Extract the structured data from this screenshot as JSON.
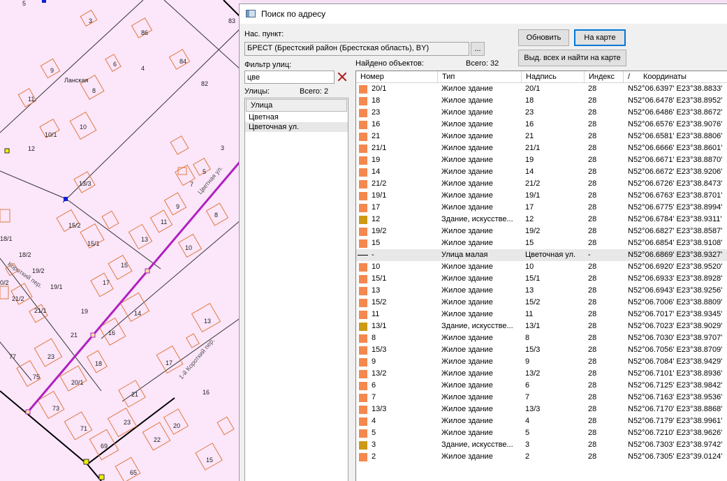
{
  "map": {
    "labels": [
      "5",
      "3",
      "83",
      "86",
      "Ланская",
      "6",
      "4",
      "9",
      "84",
      "8",
      "82",
      "11",
      "10",
      "10/1",
      "12",
      "3",
      "5",
      "13/3",
      "7",
      "9",
      "15/2",
      "11",
      "8",
      "15/1",
      "13",
      "10",
      "18/1",
      "18/2",
      "19/2",
      "15",
      "0/2",
      "19/1",
      "17",
      "21/2",
      "21/1",
      "14",
      "19",
      "13",
      "21",
      "16",
      "77",
      "23",
      "18",
      "17",
      "75",
      "20/1",
      "21",
      "16",
      "73",
      "71",
      "20",
      "23",
      "22",
      "69",
      "15",
      "65"
    ],
    "street_labels": [
      "Цветная ул.",
      "Короткий пер.",
      "1-й Короткий пер."
    ]
  },
  "dialog": {
    "title": "Поиск по адресу",
    "locality_label": "Нас. пункт:",
    "locality_value": "БРЕСТ (Брестский район (Брестская область), BY)",
    "browse_button": "...",
    "refresh_button": "Обновить",
    "on_map_button": "На карте",
    "select_all_button": "Выд. всех и найти на карте",
    "street_filter_label": "Фильтр улиц:",
    "street_filter_value": "цве",
    "streets_label": "Улицы:",
    "streets_total": "Всего: 2",
    "streets_header": "Улица",
    "streets": [
      "Цветная",
      "Цветочная ул."
    ],
    "found_label": "Найдено объектов:",
    "found_total": "Всего: 32",
    "columns": {
      "number": "Номер",
      "type": "Тип",
      "caption": "Надпись",
      "index": "Индекс",
      "sort": "/",
      "coords": "Координаты"
    },
    "colors": {
      "house": "#f4884e",
      "artificial": "#cc9a15",
      "street": "#000000"
    },
    "rows": [
      {
        "n": "20/1",
        "type": "Жилое здание",
        "cap": "20/1",
        "idx": "28",
        "coords": "N52°06.6397' E23°38.8833'",
        "icon": "house"
      },
      {
        "n": "18",
        "type": "Жилое здание",
        "cap": "18",
        "idx": "28",
        "coords": "N52°06.6478' E23°38.8952'",
        "icon": "house"
      },
      {
        "n": "23",
        "type": "Жилое здание",
        "cap": "23",
        "idx": "28",
        "coords": "N52°06.6486' E23°38.8672'",
        "icon": "house"
      },
      {
        "n": "16",
        "type": "Жилое здание",
        "cap": "16",
        "idx": "28",
        "coords": "N52°06.6576' E23°38.9076'",
        "icon": "house"
      },
      {
        "n": "21",
        "type": "Жилое здание",
        "cap": "21",
        "idx": "28",
        "coords": "N52°06.6581' E23°38.8806'",
        "icon": "house"
      },
      {
        "n": "21/1",
        "type": "Жилое здание",
        "cap": "21/1",
        "idx": "28",
        "coords": "N52°06.6666' E23°38.8601'",
        "icon": "house"
      },
      {
        "n": "19",
        "type": "Жилое здание",
        "cap": "19",
        "idx": "28",
        "coords": "N52°06.6671' E23°38.8870'",
        "icon": "house"
      },
      {
        "n": "14",
        "type": "Жилое здание",
        "cap": "14",
        "idx": "28",
        "coords": "N52°06.6672' E23°38.9206'",
        "icon": "house"
      },
      {
        "n": "21/2",
        "type": "Жилое здание",
        "cap": "21/2",
        "idx": "28",
        "coords": "N52°06.6726' E23°38.8473'",
        "icon": "house"
      },
      {
        "n": "19/1",
        "type": "Жилое здание",
        "cap": "19/1",
        "idx": "28",
        "coords": "N52°06.6763' E23°38.8701'",
        "icon": "house"
      },
      {
        "n": "17",
        "type": "Жилое здание",
        "cap": "17",
        "idx": "28",
        "coords": "N52°06.6775' E23°38.8994'",
        "icon": "house"
      },
      {
        "n": "12",
        "type": "Здание, искусстве...",
        "cap": "12",
        "idx": "28",
        "coords": "N52°06.6784' E23°38.9311'",
        "icon": "artificial"
      },
      {
        "n": "19/2",
        "type": "Жилое здание",
        "cap": "19/2",
        "idx": "28",
        "coords": "N52°06.6827' E23°38.8587'",
        "icon": "house"
      },
      {
        "n": "15",
        "type": "Жилое здание",
        "cap": "15",
        "idx": "28",
        "coords": "N52°06.6854' E23°38.9108'",
        "icon": "house"
      },
      {
        "n": "-",
        "type": "Улица малая",
        "cap": "Цветочная ул.",
        "idx": "-",
        "coords": "N52°06.6869' E23°38.9327'",
        "icon": "street",
        "selected": true
      },
      {
        "n": "10",
        "type": "Жилое здание",
        "cap": "10",
        "idx": "28",
        "coords": "N52°06.6920' E23°38.9520'",
        "icon": "house"
      },
      {
        "n": "15/1",
        "type": "Жилое здание",
        "cap": "15/1",
        "idx": "28",
        "coords": "N52°06.6933' E23°38.8928'",
        "icon": "house"
      },
      {
        "n": "13",
        "type": "Жилое здание",
        "cap": "13",
        "idx": "28",
        "coords": "N52°06.6943' E23°38.9256'",
        "icon": "house"
      },
      {
        "n": "15/2",
        "type": "Жилое здание",
        "cap": "15/2",
        "idx": "28",
        "coords": "N52°06.7006' E23°38.8809'",
        "icon": "house"
      },
      {
        "n": "11",
        "type": "Жилое здание",
        "cap": "11",
        "idx": "28",
        "coords": "N52°06.7017' E23°38.9345'",
        "icon": "house"
      },
      {
        "n": "13/1",
        "type": "Здание, искусстве...",
        "cap": "13/1",
        "idx": "28",
        "coords": "N52°06.7023' E23°38.9029'",
        "icon": "artificial"
      },
      {
        "n": "8",
        "type": "Жилое здание",
        "cap": "8",
        "idx": "28",
        "coords": "N52°06.7030' E23°38.9707'",
        "icon": "house"
      },
      {
        "n": "15/3",
        "type": "Жилое здание",
        "cap": "15/3",
        "idx": "28",
        "coords": "N52°06.7056' E23°38.8709'",
        "icon": "house"
      },
      {
        "n": "9",
        "type": "Жилое здание",
        "cap": "9",
        "idx": "28",
        "coords": "N52°06.7084' E23°38.9429'",
        "icon": "house"
      },
      {
        "n": "13/2",
        "type": "Жилое здание",
        "cap": "13/2",
        "idx": "28",
        "coords": "N52°06.7101' E23°38.8936'",
        "icon": "house"
      },
      {
        "n": "6",
        "type": "Жилое здание",
        "cap": "6",
        "idx": "28",
        "coords": "N52°06.7125' E23°38.9842'",
        "icon": "house"
      },
      {
        "n": "7",
        "type": "Жилое здание",
        "cap": "7",
        "idx": "28",
        "coords": "N52°06.7163' E23°38.9536'",
        "icon": "house"
      },
      {
        "n": "13/3",
        "type": "Жилое здание",
        "cap": "13/3",
        "idx": "28",
        "coords": "N52°06.7170' E23°38.8868'",
        "icon": "house"
      },
      {
        "n": "4",
        "type": "Жилое здание",
        "cap": "4",
        "idx": "28",
        "coords": "N52°06.7179' E23°38.9961'",
        "icon": "house"
      },
      {
        "n": "5",
        "type": "Жилое здание",
        "cap": "5",
        "idx": "28",
        "coords": "N52°06.7210' E23°38.9626'",
        "icon": "house"
      },
      {
        "n": "3",
        "type": "Здание, искусстве...",
        "cap": "3",
        "idx": "28",
        "coords": "N52°06.7303' E23°38.9742'",
        "icon": "artificial"
      },
      {
        "n": "2",
        "type": "Жилое здание",
        "cap": "2",
        "idx": "28",
        "coords": "N52°06.7305' E23°39.0124'",
        "icon": "house"
      }
    ]
  }
}
